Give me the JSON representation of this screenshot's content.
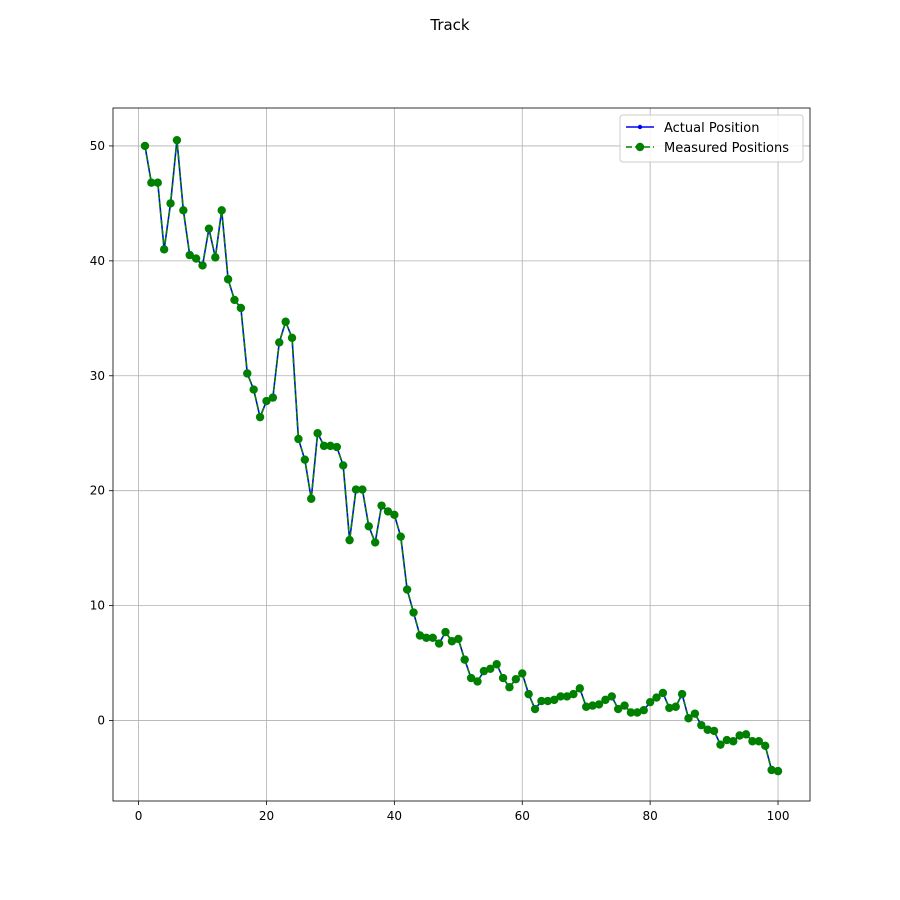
{
  "chart_data": {
    "type": "line",
    "title": "Track",
    "xlabel": "",
    "ylabel": "",
    "xlim": [
      -4.0,
      105.0
    ],
    "ylim": [
      -7.0,
      53.3
    ],
    "xticks": [
      0,
      20,
      40,
      60,
      80,
      100
    ],
    "yticks": [
      0,
      10,
      20,
      30,
      40,
      50
    ],
    "grid": true,
    "legend_position": "top-right",
    "x": [
      1,
      2,
      3,
      4,
      5,
      6,
      7,
      8,
      9,
      10,
      11,
      12,
      13,
      14,
      15,
      16,
      17,
      18,
      19,
      20,
      21,
      22,
      23,
      24,
      25,
      26,
      27,
      28,
      29,
      30,
      31,
      32,
      33,
      34,
      35,
      36,
      37,
      38,
      39,
      40,
      41,
      42,
      43,
      44,
      45,
      46,
      47,
      48,
      49,
      50,
      51,
      52,
      53,
      54,
      55,
      56,
      57,
      58,
      59,
      60,
      61,
      62,
      63,
      64,
      65,
      66,
      67,
      68,
      69,
      70,
      71,
      72,
      73,
      74,
      75,
      76,
      77,
      78,
      79,
      80,
      81,
      82,
      83,
      84,
      85,
      86,
      87,
      88,
      89,
      90,
      91,
      92,
      93,
      94,
      95,
      96,
      97,
      98,
      99,
      100
    ],
    "series": [
      {
        "name": "Actual Position",
        "color": "#0000ff",
        "linestyle": "solid",
        "marker": "small-dot",
        "values": [
          50.0,
          46.8,
          46.8,
          41.0,
          45.0,
          50.5,
          44.4,
          40.5,
          40.2,
          39.6,
          42.8,
          40.3,
          44.4,
          38.4,
          36.6,
          35.9,
          30.2,
          28.8,
          26.4,
          27.8,
          28.1,
          32.9,
          34.7,
          33.3,
          24.5,
          22.7,
          19.3,
          25.0,
          23.9,
          23.9,
          23.8,
          22.2,
          15.7,
          20.1,
          20.1,
          16.9,
          15.5,
          18.7,
          18.2,
          17.9,
          16.0,
          11.4,
          9.4,
          7.4,
          7.2,
          7.2,
          6.7,
          7.7,
          6.9,
          7.1,
          5.3,
          3.7,
          3.4,
          4.3,
          4.5,
          4.9,
          3.7,
          2.9,
          3.6,
          4.1,
          2.3,
          1.0,
          1.7,
          1.7,
          1.8,
          2.1,
          2.1,
          2.3,
          2.8,
          1.2,
          1.3,
          1.4,
          1.8,
          2.1,
          1.0,
          1.3,
          0.7,
          0.7,
          0.9,
          1.6,
          2.0,
          2.4,
          1.1,
          1.2,
          2.3,
          0.2,
          0.6,
          -0.4,
          -0.8,
          -0.9,
          -2.1,
          -1.7,
          -1.8,
          -1.3,
          -1.2,
          -1.8,
          -1.8,
          -2.2,
          -4.3,
          -4.4
        ]
      },
      {
        "name": "Measured Positions",
        "color": "#008000",
        "linestyle": "dashed",
        "marker": "circle",
        "values": [
          50.0,
          46.8,
          46.8,
          41.0,
          45.0,
          50.5,
          44.4,
          40.5,
          40.2,
          39.6,
          42.8,
          40.3,
          44.4,
          38.4,
          36.6,
          35.9,
          30.2,
          28.8,
          26.4,
          27.8,
          28.1,
          32.9,
          34.7,
          33.3,
          24.5,
          22.7,
          19.3,
          25.0,
          23.9,
          23.9,
          23.8,
          22.2,
          15.7,
          20.1,
          20.1,
          16.9,
          15.5,
          18.7,
          18.2,
          17.9,
          16.0,
          11.4,
          9.4,
          7.4,
          7.2,
          7.2,
          6.7,
          7.7,
          6.9,
          7.1,
          5.3,
          3.7,
          3.4,
          4.3,
          4.5,
          4.9,
          3.7,
          2.9,
          3.6,
          4.1,
          2.3,
          1.0,
          1.7,
          1.7,
          1.8,
          2.1,
          2.1,
          2.3,
          2.8,
          1.2,
          1.3,
          1.4,
          1.8,
          2.1,
          1.0,
          1.3,
          0.7,
          0.7,
          0.9,
          1.6,
          2.0,
          2.4,
          1.1,
          1.2,
          2.3,
          0.2,
          0.6,
          -0.4,
          -0.8,
          -0.9,
          -2.1,
          -1.7,
          -1.8,
          -1.3,
          -1.2,
          -1.8,
          -1.8,
          -2.2,
          -4.3,
          -4.4
        ]
      }
    ]
  }
}
